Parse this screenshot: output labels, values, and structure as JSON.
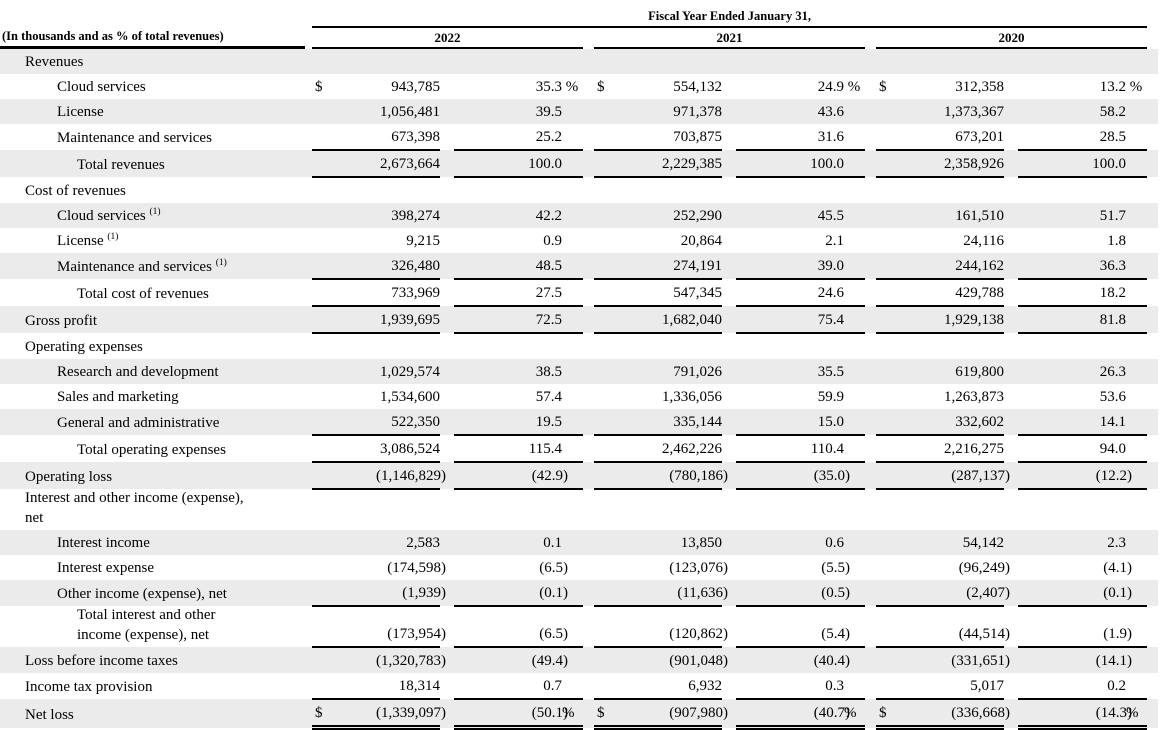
{
  "table": {
    "span_header": "Fiscal Year Ended January 31,",
    "col_header_note": "(In thousands and as % of total revenues)",
    "years": [
      "2022",
      "2021",
      "2020"
    ],
    "currency_symbol": "$",
    "colors": {
      "row_shade": "#ebebeb",
      "rule": "#000000",
      "text": "#000000"
    },
    "rows": [
      {
        "label": "Revenues",
        "indent": 1,
        "shaded": true,
        "section": true
      },
      {
        "label": "Cloud services",
        "indent": 2,
        "shaded": false,
        "dollar": true,
        "pct_unit": " %",
        "values": [
          [
            "943,785",
            "35.3"
          ],
          [
            "554,132",
            "24.9"
          ],
          [
            "312,358",
            "13.2"
          ]
        ]
      },
      {
        "label": "License",
        "indent": 2,
        "shaded": true,
        "values": [
          [
            "1,056,481",
            "39.5"
          ],
          [
            "971,378",
            "43.6"
          ],
          [
            "1,373,367",
            "58.2"
          ]
        ]
      },
      {
        "label": "Maintenance and services",
        "indent": 2,
        "shaded": false,
        "rule": "single",
        "values": [
          [
            "673,398",
            "25.2"
          ],
          [
            "703,875",
            "31.6"
          ],
          [
            "673,201",
            "28.5"
          ]
        ]
      },
      {
        "label": "Total revenues",
        "indent": 3,
        "shaded": true,
        "rule": "single",
        "values": [
          [
            "2,673,664",
            "100.0"
          ],
          [
            "2,229,385",
            "100.0"
          ],
          [
            "2,358,926",
            "100.0"
          ]
        ]
      },
      {
        "label": "Cost of revenues",
        "indent": 1,
        "shaded": false,
        "section": true
      },
      {
        "label": "Cloud services",
        "sup": "(1)",
        "indent": 2,
        "shaded": true,
        "values": [
          [
            "398,274",
            "42.2"
          ],
          [
            "252,290",
            "45.5"
          ],
          [
            "161,510",
            "51.7"
          ]
        ]
      },
      {
        "label": "License",
        "sup": "(1)",
        "indent": 2,
        "shaded": false,
        "values": [
          [
            "9,215",
            "0.9"
          ],
          [
            "20,864",
            "2.1"
          ],
          [
            "24,116",
            "1.8"
          ]
        ]
      },
      {
        "label": "Maintenance and services",
        "sup": "(1)",
        "indent": 2,
        "shaded": true,
        "rule": "single",
        "values": [
          [
            "326,480",
            "48.5"
          ],
          [
            "274,191",
            "39.0"
          ],
          [
            "244,162",
            "36.3"
          ]
        ]
      },
      {
        "label": "Total cost of revenues",
        "indent": 3,
        "shaded": false,
        "rule": "single",
        "values": [
          [
            "733,969",
            "27.5"
          ],
          [
            "547,345",
            "24.6"
          ],
          [
            "429,788",
            "18.2"
          ]
        ]
      },
      {
        "label": "Gross profit",
        "indent": 1,
        "shaded": true,
        "rule": "single",
        "values": [
          [
            "1,939,695",
            "72.5"
          ],
          [
            "1,682,040",
            "75.4"
          ],
          [
            "1,929,138",
            "81.8"
          ]
        ]
      },
      {
        "label": "Operating expenses",
        "indent": 1,
        "shaded": false,
        "section": true
      },
      {
        "label": "Research and development",
        "indent": 2,
        "shaded": true,
        "values": [
          [
            "1,029,574",
            "38.5"
          ],
          [
            "791,026",
            "35.5"
          ],
          [
            "619,800",
            "26.3"
          ]
        ]
      },
      {
        "label": "Sales and marketing",
        "indent": 2,
        "shaded": false,
        "values": [
          [
            "1,534,600",
            "57.4"
          ],
          [
            "1,336,056",
            "59.9"
          ],
          [
            "1,263,873",
            "53.6"
          ]
        ]
      },
      {
        "label": "General and administrative",
        "indent": 2,
        "shaded": true,
        "rule": "single",
        "values": [
          [
            "522,350",
            "19.5"
          ],
          [
            "335,144",
            "15.0"
          ],
          [
            "332,602",
            "14.1"
          ]
        ]
      },
      {
        "label": "Total operating expenses",
        "indent": 3,
        "shaded": false,
        "rule": "single",
        "values": [
          [
            "3,086,524",
            "115.4"
          ],
          [
            "2,462,226",
            "110.4"
          ],
          [
            "2,216,275",
            "94.0"
          ]
        ]
      },
      {
        "label": "Operating loss",
        "indent": 1,
        "shaded": true,
        "rule": "single",
        "values": [
          [
            "(1,146,829)",
            "(42.9)"
          ],
          [
            "(780,186)",
            "(35.0)"
          ],
          [
            "(287,137)",
            "(12.2)"
          ]
        ]
      },
      {
        "label": "Interest and other income (expense), net",
        "label_lines": [
          "Interest and other income (expense),",
          "net"
        ],
        "indent": 1,
        "shaded": false,
        "section": true
      },
      {
        "label": "Interest income",
        "indent": 2,
        "shaded": true,
        "values": [
          [
            "2,583",
            "0.1"
          ],
          [
            "13,850",
            "0.6"
          ],
          [
            "54,142",
            "2.3"
          ]
        ]
      },
      {
        "label": "Interest expense",
        "indent": 2,
        "shaded": false,
        "values": [
          [
            "(174,598)",
            "(6.5)"
          ],
          [
            "(123,076)",
            "(5.5)"
          ],
          [
            "(96,249)",
            "(4.1)"
          ]
        ]
      },
      {
        "label": "Other income (expense), net",
        "indent": 2,
        "shaded": true,
        "rule": "single",
        "values": [
          [
            "(1,939)",
            "(0.1)"
          ],
          [
            "(11,636)",
            "(0.5)"
          ],
          [
            "(2,407)",
            "(0.1)"
          ]
        ]
      },
      {
        "label": "Total interest and other income (expense), net",
        "label_lines": [
          "Total interest and other",
          "income (expense), net"
        ],
        "indent": 3,
        "shaded": false,
        "rule": "single",
        "values": [
          [
            "(173,954)",
            "(6.5)"
          ],
          [
            "(120,862)",
            "(5.4)"
          ],
          [
            "(44,514)",
            "(1.9)"
          ]
        ]
      },
      {
        "label": "Loss before income taxes",
        "indent": 1,
        "shaded": true,
        "values": [
          [
            "(1,320,783)",
            "(49.4)"
          ],
          [
            "(901,048)",
            "(40.4)"
          ],
          [
            "(331,651)",
            "(14.1)"
          ]
        ]
      },
      {
        "label": "Income tax provision",
        "indent": 1,
        "shaded": false,
        "rule": "single",
        "values": [
          [
            "18,314",
            "0.7"
          ],
          [
            "6,932",
            "0.3"
          ],
          [
            "5,017",
            "0.2"
          ]
        ]
      },
      {
        "label": "Net loss",
        "indent": 1,
        "shaded": true,
        "rule": "double",
        "dollar": true,
        "pct_unit": "%",
        "values": [
          [
            "(1,339,097)",
            "(50.1)"
          ],
          [
            "(907,980)",
            "(40.7)"
          ],
          [
            "(336,668)",
            "(14.3)"
          ]
        ]
      }
    ]
  }
}
